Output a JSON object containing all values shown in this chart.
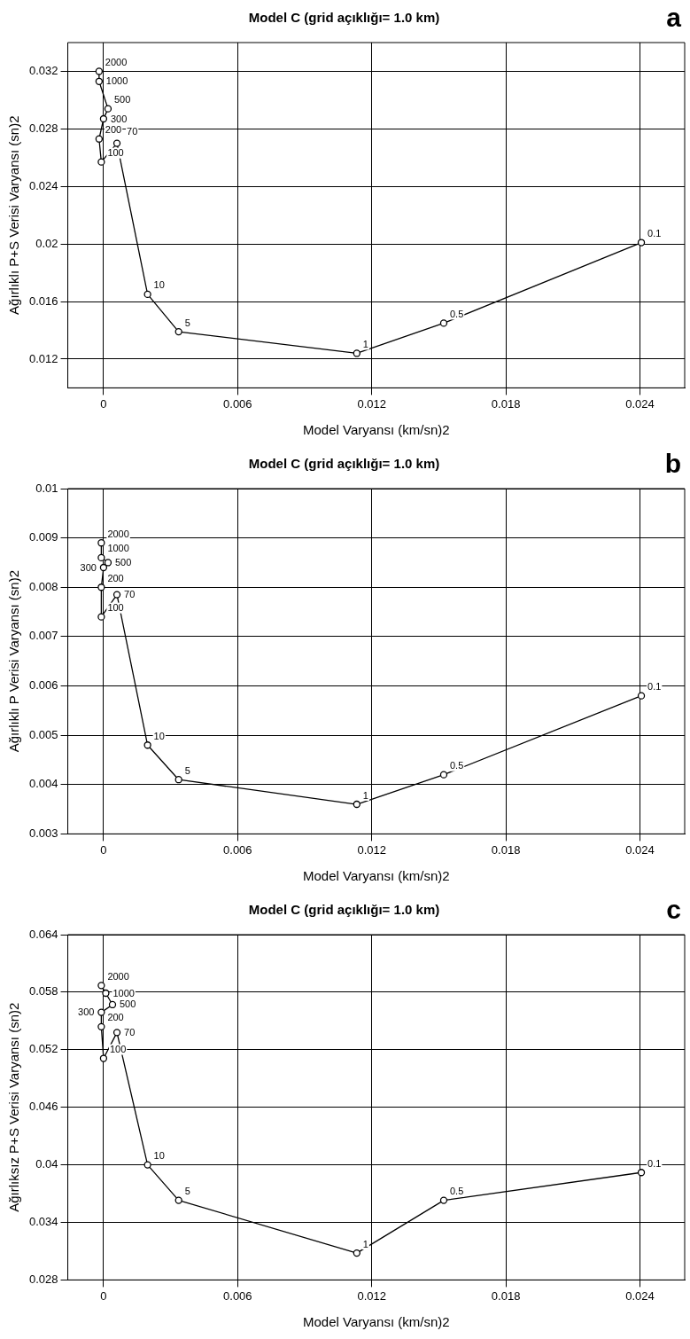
{
  "chart_data": [
    {
      "type": "line",
      "title": "Model C (grid açıklığı= 1.0 km)",
      "xlabel": "Model Varyansı (km/sn)2",
      "ylabel": "Ağırlıklı P+S Verisi Varyansı (sn)2",
      "marker": "circle",
      "grid": true,
      "series": [
        {
          "color": "#000000",
          "x": [
            -0.0002,
            -0.0002,
            0.0002,
            0.0,
            -0.0002,
            -0.0001,
            0.0006,
            0.00197,
            0.00336,
            0.01133,
            0.01522,
            0.02406
          ],
          "values": [
            0.032,
            0.0313,
            0.0294,
            0.0287,
            0.0273,
            0.0257,
            0.027,
            0.0165,
            0.0139,
            0.0124,
            0.0145,
            0.0201
          ]
        }
      ],
      "xlim": [
        -0.0016,
        0.026
      ],
      "xticks": [
        0,
        0.006,
        0.012,
        0.018,
        0.024
      ],
      "ylim": [
        0.01,
        0.034
      ],
      "yticks": [
        0.012,
        0.016,
        0.02,
        0.024,
        0.028,
        0.032
      ],
      "annotations": [
        "a",
        {
          "text": "2000",
          "x": -0.0002,
          "y": 0.032
        },
        {
          "text": "1000",
          "x": -0.0002,
          "y": 0.0313
        },
        {
          "text": "500",
          "x": 0.0002,
          "y": 0.0294
        },
        {
          "text": "300",
          "x": 0.0,
          "y": 0.0287
        },
        {
          "text": "200",
          "x": -0.0002,
          "y": 0.0273
        },
        {
          "text": "100",
          "x": -0.0001,
          "y": 0.0257
        },
        {
          "text": "70",
          "x": 0.0006,
          "y": 0.027
        },
        {
          "text": "10",
          "x": 0.00197,
          "y": 0.0165
        },
        {
          "text": "5",
          "x": 0.00336,
          "y": 0.0139
        },
        {
          "text": "1",
          "x": 0.01133,
          "y": 0.0124
        },
        {
          "text": "0.5",
          "x": 0.01522,
          "y": 0.0145
        },
        {
          "text": "0.1",
          "x": 0.02406,
          "y": 0.0201
        }
      ]
    },
    {
      "type": "line",
      "title": "Model C (grid açıklığı= 1.0 km)",
      "xlabel": "Model Varyansı (km/sn)2",
      "ylabel": "Ağırlıklı P Verisi Varyansı (sn)2",
      "marker": "circle",
      "grid": true,
      "series": [
        {
          "color": "#000000",
          "x": [
            -0.0001,
            -0.0001,
            0.0002,
            0.0,
            -0.0001,
            -0.0001,
            0.0006,
            0.00197,
            0.00336,
            0.01133,
            0.01522,
            0.02406
          ],
          "values": [
            0.0089,
            0.0086,
            0.0085,
            0.0084,
            0.008,
            0.0074,
            0.00785,
            0.0048,
            0.0041,
            0.0036,
            0.0042,
            0.0058
          ]
        }
      ],
      "xlim": [
        -0.0016,
        0.026
      ],
      "xticks": [
        0,
        0.006,
        0.012,
        0.018,
        0.024
      ],
      "ylim": [
        0.003,
        0.01
      ],
      "yticks": [
        0.003,
        0.004,
        0.005,
        0.006,
        0.007,
        0.008,
        0.009,
        0.01
      ],
      "annotations": [
        "b",
        {
          "text": "2000",
          "x": -0.0001,
          "y": 0.0089
        },
        {
          "text": "1000",
          "x": -0.0001,
          "y": 0.0086
        },
        {
          "text": "500",
          "x": 0.0002,
          "y": 0.0085
        },
        {
          "text": "300",
          "x": 0.0,
          "y": 0.0084
        },
        {
          "text": "200",
          "x": -0.0001,
          "y": 0.008
        },
        {
          "text": "100",
          "x": -0.0001,
          "y": 0.0074
        },
        {
          "text": "70",
          "x": 0.0006,
          "y": 0.00785
        },
        {
          "text": "10",
          "x": 0.00197,
          "y": 0.0048
        },
        {
          "text": "5",
          "x": 0.00336,
          "y": 0.0041
        },
        {
          "text": "1",
          "x": 0.01133,
          "y": 0.0036
        },
        {
          "text": "0.5",
          "x": 0.01522,
          "y": 0.0042
        },
        {
          "text": "0.1",
          "x": 0.02406,
          "y": 0.0058
        }
      ]
    },
    {
      "type": "line",
      "title": "Model C (grid açıklığı= 1.0 km)",
      "xlabel": "Model Varyansı (km/sn)2",
      "ylabel": "Ağırlıksız P+S Verisi Varyansı (sn)2",
      "marker": "circle",
      "grid": true,
      "series": [
        {
          "color": "#000000",
          "x": [
            -0.0001,
            0.0001,
            0.0004,
            -0.0001,
            -0.0001,
            0.0,
            0.0006,
            0.00197,
            0.00336,
            0.01133,
            0.01522,
            0.02406
          ],
          "values": [
            0.0587,
            0.0579,
            0.0567,
            0.0559,
            0.0544,
            0.0511,
            0.0538,
            0.04,
            0.0363,
            0.0308,
            0.0363,
            0.0392
          ]
        }
      ],
      "xlim": [
        -0.0016,
        0.026
      ],
      "xticks": [
        0,
        0.006,
        0.012,
        0.018,
        0.024
      ],
      "ylim": [
        0.028,
        0.064
      ],
      "yticks": [
        0.028,
        0.034,
        0.04,
        0.046,
        0.052,
        0.058,
        0.064
      ],
      "annotations": [
        "c",
        {
          "text": "2000",
          "x": -0.0001,
          "y": 0.0587
        },
        {
          "text": "1000",
          "x": 0.0001,
          "y": 0.0579
        },
        {
          "text": "500",
          "x": 0.0004,
          "y": 0.0567
        },
        {
          "text": "300",
          "x": -0.0001,
          "y": 0.0559
        },
        {
          "text": "200",
          "x": -0.0001,
          "y": 0.0544
        },
        {
          "text": "100",
          "x": 0.0,
          "y": 0.0511
        },
        {
          "text": "70",
          "x": 0.0006,
          "y": 0.0538
        },
        {
          "text": "10",
          "x": 0.00197,
          "y": 0.04
        },
        {
          "text": "5",
          "x": 0.00336,
          "y": 0.0363
        },
        {
          "text": "1",
          "x": 0.01133,
          "y": 0.0308
        },
        {
          "text": "0.5",
          "x": 0.01522,
          "y": 0.0363
        },
        {
          "text": "0.1",
          "x": 0.02406,
          "y": 0.0392
        }
      ]
    }
  ]
}
